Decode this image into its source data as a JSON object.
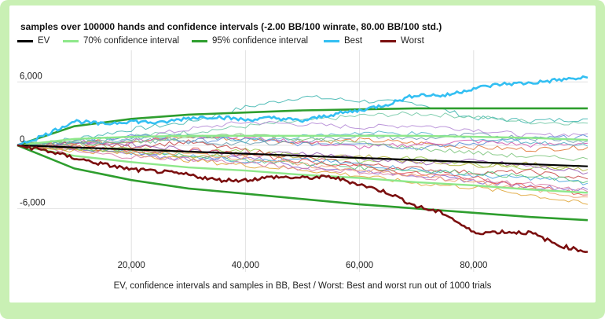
{
  "chart_data": {
    "type": "line",
    "title": "samples over 100000 hands and confidence intervals (-2.00 BB/100 winrate, 80.00 BB/100 std.)",
    "caption": "EV, confidence intervals and samples in BB, Best / Worst: Best and worst run out of 1000 trials",
    "xlim": [
      0,
      100000
    ],
    "ylim": [
      -12000,
      9000
    ],
    "x_ticks": [
      {
        "value": 20000,
        "label": "20,000"
      },
      {
        "value": 40000,
        "label": "40,000"
      },
      {
        "value": 60000,
        "label": "60,000"
      },
      {
        "value": 80000,
        "label": "80,000"
      }
    ],
    "y_ticks": [
      {
        "value": 6000,
        "label": "6,000"
      },
      {
        "value": 0,
        "label": "0"
      },
      {
        "value": -6000,
        "label": "-6,000"
      }
    ],
    "grid": true,
    "legend_position": "top",
    "legend": [
      {
        "name": "EV",
        "color": "#000000"
      },
      {
        "name": "70% confidence interval",
        "color": "#8ee88a"
      },
      {
        "name": "95% confidence interval",
        "color": "#2e9e2e"
      },
      {
        "name": "Best",
        "color": "#33bff2"
      },
      {
        "name": "Worst",
        "color": "#7b0f0f"
      }
    ],
    "series": [
      {
        "name": "EV",
        "color": "#000000",
        "x": [
          0,
          100000
        ],
        "y": [
          0,
          -2000
        ]
      },
      {
        "name": "70% confidence interval",
        "color": "#8ee88a",
        "x": [
          0,
          10000,
          20000,
          30000,
          40000,
          50000,
          60000,
          70000,
          80000,
          90000,
          100000
        ],
        "y_upper": [
          0,
          600,
          800,
          900,
          900,
          900,
          900,
          900,
          800,
          700,
          500
        ],
        "y_lower": [
          0,
          -1000,
          -1600,
          -2100,
          -2400,
          -2800,
          -3100,
          -3500,
          -3800,
          -4200,
          -4500
        ]
      },
      {
        "name": "95% confidence interval",
        "color": "#2e9e2e",
        "x": [
          0,
          10000,
          20000,
          30000,
          40000,
          50000,
          60000,
          70000,
          80000,
          90000,
          100000
        ],
        "y_upper": [
          0,
          1800,
          2500,
          2900,
          3100,
          3300,
          3400,
          3500,
          3500,
          3500,
          3500
        ],
        "y_lower": [
          0,
          -2200,
          -3300,
          -4100,
          -4600,
          -5100,
          -5600,
          -6000,
          -6400,
          -6800,
          -7100
        ]
      },
      {
        "name": "Best",
        "color": "#33bff2",
        "x": [
          0,
          5000,
          10000,
          15000,
          20000,
          25000,
          30000,
          35000,
          40000,
          45000,
          50000,
          55000,
          60000,
          65000,
          70000,
          75000,
          80000,
          85000,
          90000,
          95000,
          100000
        ],
        "y": [
          0,
          1000,
          2300,
          2000,
          2300,
          2100,
          2600,
          2700,
          2400,
          2600,
          2300,
          2900,
          3300,
          3900,
          4800,
          4700,
          5400,
          5800,
          5900,
          6200,
          6400
        ]
      },
      {
        "name": "Worst",
        "color": "#7b0f0f",
        "x": [
          0,
          5000,
          10000,
          15000,
          20000,
          25000,
          30000,
          35000,
          40000,
          45000,
          50000,
          55000,
          60000,
          65000,
          70000,
          75000,
          80000,
          85000,
          90000,
          95000,
          100000
        ],
        "y": [
          0,
          -500,
          -1200,
          -1800,
          -2300,
          -2500,
          -2800,
          -3300,
          -3300,
          -3000,
          -3100,
          -3000,
          -3700,
          -4500,
          -5800,
          -6500,
          -8300,
          -8200,
          -8300,
          -9500,
          -10100
        ]
      }
    ],
    "samples": [
      {
        "color": "#3fb6b0",
        "y": [
          0,
          600,
          1500,
          2200,
          3600,
          4600,
          4200,
          4000,
          2600,
          2300,
          2500
        ]
      },
      {
        "color": "#73c9a6",
        "y": [
          0,
          500,
          900,
          1200,
          1800,
          2300,
          2800,
          3000,
          2700,
          2200,
          2100
        ]
      },
      {
        "color": "#b58bd6",
        "y": [
          0,
          200,
          700,
          1500,
          2200,
          2000,
          1700,
          1900,
          1500,
          900,
          1100
        ]
      },
      {
        "color": "#e1793a",
        "y": [
          0,
          300,
          400,
          800,
          600,
          300,
          500,
          200,
          -200,
          -400,
          -200
        ]
      },
      {
        "color": "#5b8ed8",
        "y": [
          0,
          400,
          900,
          400,
          600,
          100,
          300,
          -300,
          200,
          600,
          800
        ]
      },
      {
        "color": "#d35bb0",
        "y": [
          0,
          -100,
          400,
          900,
          800,
          300,
          -200,
          100,
          400,
          0,
          200
        ]
      },
      {
        "color": "#9ecf52",
        "y": [
          0,
          200,
          -300,
          -600,
          -500,
          -1000,
          -1500,
          -1200,
          -1800,
          -2200,
          -2000
        ]
      },
      {
        "color": "#c84545",
        "y": [
          0,
          100,
          -100,
          300,
          -500,
          -1200,
          -1800,
          -2200,
          -2600,
          -2500,
          -3200
        ]
      },
      {
        "color": "#4aa3df",
        "y": [
          0,
          -300,
          -700,
          -1000,
          -1500,
          -1400,
          -1800,
          -2300,
          -2900,
          -3100,
          -3600
        ]
      },
      {
        "color": "#8b6fd1",
        "y": [
          0,
          -200,
          -900,
          -1300,
          -1100,
          -2000,
          -2400,
          -2800,
          -3400,
          -3900,
          -4200
        ]
      },
      {
        "color": "#e0a63a",
        "y": [
          0,
          -500,
          -800,
          -1400,
          -1900,
          -2300,
          -2900,
          -3600,
          -4000,
          -4700,
          -5600
        ]
      },
      {
        "color": "#5ac47c",
        "y": [
          0,
          -300,
          -600,
          -900,
          -1400,
          -1700,
          -2100,
          -2400,
          -2600,
          -3000,
          -3400
        ]
      },
      {
        "color": "#d97fa8",
        "y": [
          0,
          -600,
          -1100,
          -1300,
          -1700,
          -2200,
          -2500,
          -3000,
          -3300,
          -3700,
          -4400
        ]
      },
      {
        "color": "#6f9fb0",
        "y": [
          0,
          100,
          500,
          300,
          100,
          400,
          900,
          600,
          1000,
          700,
          400
        ]
      },
      {
        "color": "#b3b33a",
        "y": [
          0,
          -400,
          -500,
          -1000,
          -800,
          -1200,
          -1000,
          -1500,
          -1900,
          -1800,
          -2300
        ]
      },
      {
        "color": "#9a5fb5",
        "y": [
          0,
          300,
          100,
          -400,
          -900,
          -700,
          -1200,
          -1700,
          -1500,
          -2000,
          -2600
        ]
      },
      {
        "color": "#e35454",
        "y": [
          0,
          -200,
          -600,
          -400,
          -900,
          -1500,
          -2000,
          -2700,
          -3100,
          -3900,
          -4700
        ]
      },
      {
        "color": "#58b6c9",
        "y": [
          0,
          200,
          600,
          900,
          400,
          800,
          1200,
          1100,
          600,
          300,
          -100
        ]
      },
      {
        "color": "#f0a070",
        "y": [
          0,
          -100,
          -500,
          -800,
          -1200,
          -1900,
          -2300,
          -2900,
          -3500,
          -4200,
          -4900
        ]
      },
      {
        "color": "#7fc77f",
        "y": [
          0,
          400,
          200,
          700,
          1100,
          600,
          200,
          -300,
          -700,
          -1100,
          -1300
        ]
      }
    ]
  }
}
